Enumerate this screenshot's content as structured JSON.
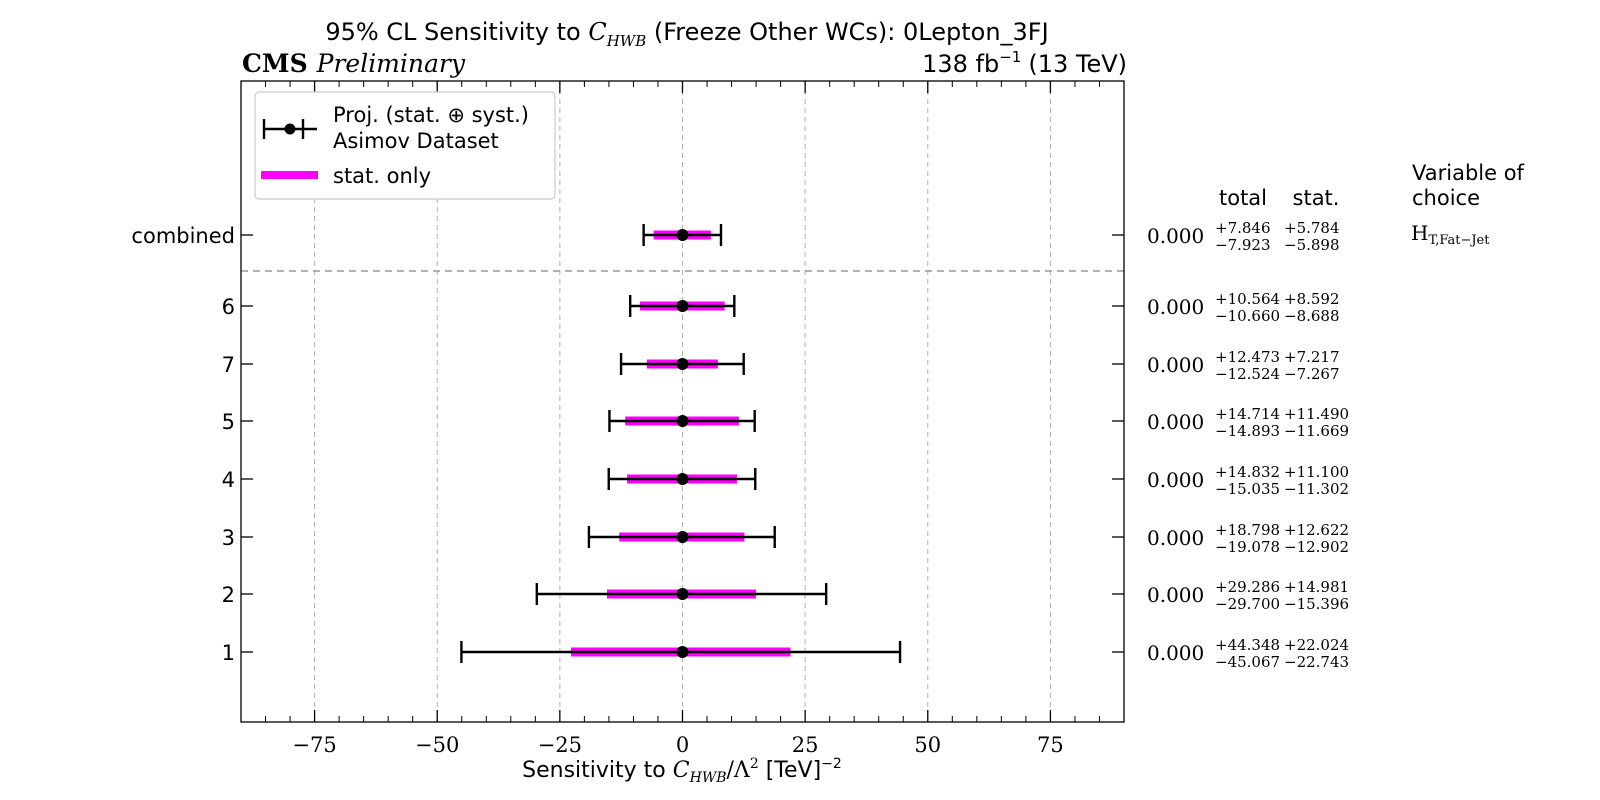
{
  "chart_data": {
    "type": "scatter",
    "title": {
      "prefix": "95% CL Sensitivity to ",
      "wc_symbol": "C",
      "wc_subscript": "HWB",
      "suffix": " (Freeze Other WCs): 0Lepton_3FJ"
    },
    "experiment_label": "CMS",
    "status_label": "Preliminary",
    "lumi_label": {
      "value": "138 fb",
      "exponent": "−1",
      "energy": "(13 TeV)"
    },
    "xlabel": {
      "prefix": "Sensitivity to ",
      "wc_symbol": "C",
      "wc_subscript": "HWB",
      "mid": "/Λ",
      "sq": "2",
      "unit": " [TeV]",
      "unit_exp": "−2"
    },
    "xlim": [
      -90,
      90
    ],
    "xticks": [
      -75,
      -50,
      -25,
      0,
      25,
      50,
      75
    ],
    "xtick_labels": [
      "−75",
      "−50",
      "−25",
      "0",
      "25",
      "50",
      "75"
    ],
    "grid": "vertical",
    "legend": {
      "placement": "top-left",
      "entries": [
        {
          "line1": "Proj. (stat. ⊕ syst.)",
          "line2": "Asimov Dataset"
        },
        {
          "line1": "stat. only"
        }
      ]
    },
    "table_headers": {
      "total": "total",
      "stat": "stat.",
      "variable_line1": "Variable of",
      "variable_line2": "choice"
    },
    "variable": {
      "base": "H",
      "sub": "T,Fat−Jet"
    },
    "rows": [
      {
        "label": "combined",
        "central": "0.000",
        "value": 0.0,
        "total_up": 7.846,
        "total_down": -7.923,
        "total_up_label": "+7.846",
        "total_down_label": "−7.923",
        "stat_up": 5.784,
        "stat_down": -5.898,
        "stat_up_label": "+5.784",
        "stat_down_label": "−5.898"
      },
      {
        "label": "6",
        "central": "0.000",
        "value": 0.0,
        "total_up": 10.564,
        "total_down": -10.66,
        "total_up_label": "+10.564",
        "total_down_label": "−10.660",
        "stat_up": 8.592,
        "stat_down": -8.688,
        "stat_up_label": "+8.592",
        "stat_down_label": "−8.688"
      },
      {
        "label": "7",
        "central": "0.000",
        "value": 0.0,
        "total_up": 12.473,
        "total_down": -12.524,
        "total_up_label": "+12.473",
        "total_down_label": "−12.524",
        "stat_up": 7.217,
        "stat_down": -7.267,
        "stat_up_label": "+7.217",
        "stat_down_label": "−7.267"
      },
      {
        "label": "5",
        "central": "0.000",
        "value": 0.0,
        "total_up": 14.714,
        "total_down": -14.893,
        "total_up_label": "+14.714",
        "total_down_label": "−14.893",
        "stat_up": 11.49,
        "stat_down": -11.669,
        "stat_up_label": "+11.490",
        "stat_down_label": "−11.669"
      },
      {
        "label": "4",
        "central": "0.000",
        "value": 0.0,
        "total_up": 14.832,
        "total_down": -15.035,
        "total_up_label": "+14.832",
        "total_down_label": "−15.035",
        "stat_up": 11.1,
        "stat_down": -11.302,
        "stat_up_label": "+11.100",
        "stat_down_label": "−11.302"
      },
      {
        "label": "3",
        "central": "0.000",
        "value": 0.0,
        "total_up": 18.798,
        "total_down": -19.078,
        "total_up_label": "+18.798",
        "total_down_label": "−19.078",
        "stat_up": 12.622,
        "stat_down": -12.902,
        "stat_up_label": "+12.622",
        "stat_down_label": "−12.902"
      },
      {
        "label": "2",
        "central": "0.000",
        "value": 0.0,
        "total_up": 29.286,
        "total_down": -29.7,
        "total_up_label": "+29.286",
        "total_down_label": "−29.700",
        "stat_up": 14.981,
        "stat_down": -15.396,
        "stat_up_label": "+14.981",
        "stat_down_label": "−15.396"
      },
      {
        "label": "1",
        "central": "0.000",
        "value": 0.0,
        "total_up": 44.348,
        "total_down": -45.067,
        "total_up_label": "+44.348",
        "total_down_label": "−45.067",
        "stat_up": 22.024,
        "stat_down": -22.743,
        "stat_up_label": "+22.024",
        "stat_down_label": "−22.743"
      }
    ],
    "colors": {
      "total": "#000000",
      "stat": "#ff00ff",
      "grid": "#b0b0b0",
      "separator": "#999999"
    }
  }
}
